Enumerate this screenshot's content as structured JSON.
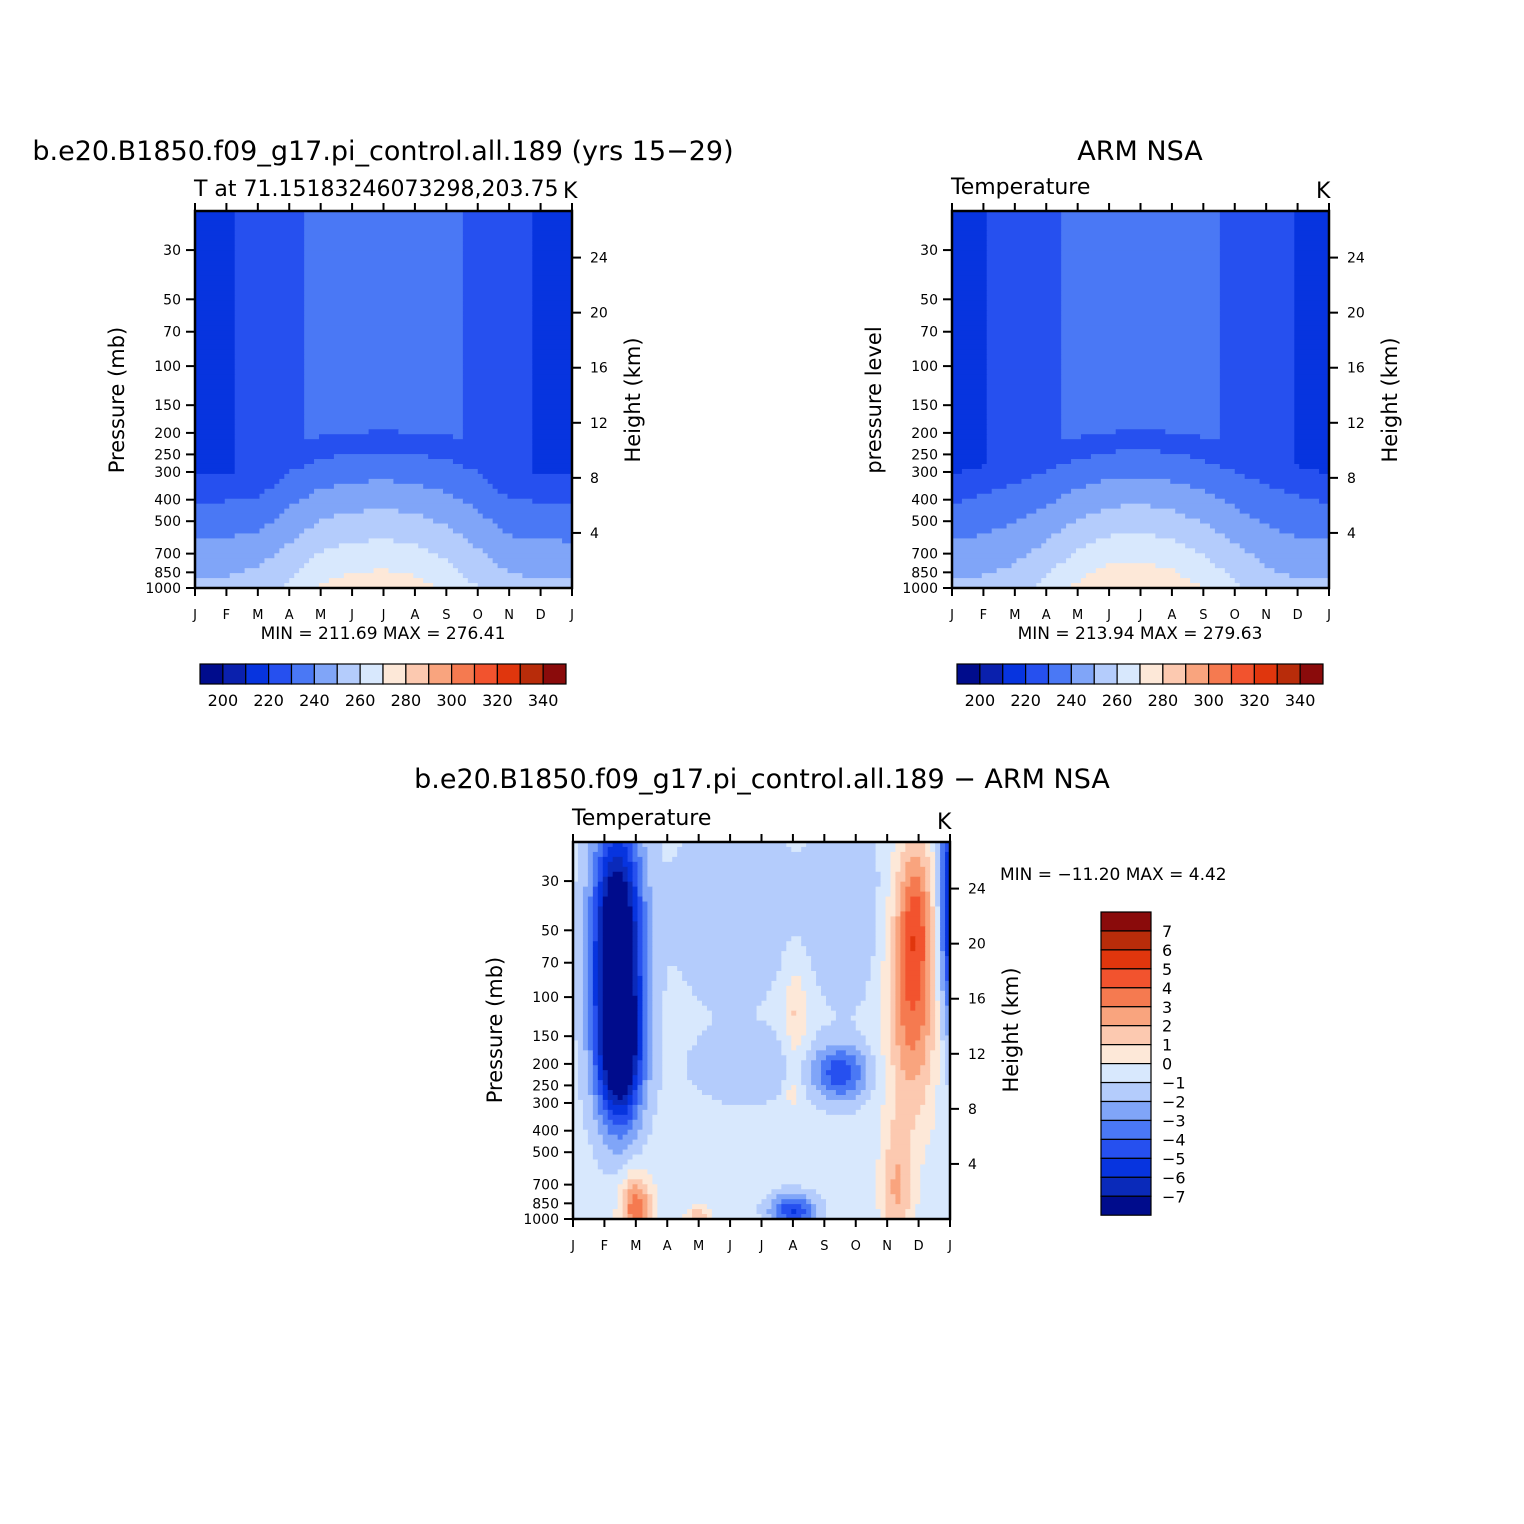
{
  "colors": {
    "abs_levels": [
      "#000c8c",
      "#0a20ad",
      "#0734df",
      "#2650ef",
      "#4a78f5",
      "#80a5f8",
      "#b4ccfc",
      "#d8e8fd",
      "#fde8d8",
      "#fcc9b0",
      "#f9a47e",
      "#f57a50",
      "#f2532e",
      "#e0360d",
      "#b82c0a",
      "#8a0b0b"
    ],
    "diff_levels": [
      "#000c8c",
      "#0a2aba",
      "#0734df",
      "#2650ef",
      "#4a78f5",
      "#80a5f8",
      "#b4ccfc",
      "#d8e8fd",
      "#fde8d8",
      "#fcc9b0",
      "#f9a47e",
      "#f57a50",
      "#f2532e",
      "#e0360d",
      "#b82c0a",
      "#8a0b0b"
    ]
  },
  "chart_data": [
    {
      "type": "heatmap",
      "title": "b.e20.B1850.f09_g17.pi_control.all.189 (yrs 15−29)",
      "subtitle_left": "T at 71.15183246073298,203.75",
      "subtitle_right": "K",
      "ylabel": "Pressure (mb)",
      "ylabel_right": "Height (km)",
      "x_ticks": [
        "J",
        "F",
        "M",
        "A",
        "M",
        "J",
        "J",
        "A",
        "S",
        "O",
        "N",
        "D",
        "J"
      ],
      "y_ticks": [
        30,
        50,
        70,
        100,
        150,
        200,
        250,
        300,
        400,
        500,
        700,
        850,
        1000
      ],
      "ylim": [
        1000,
        20
      ],
      "y_log": true,
      "height_ticks": [
        4,
        8,
        12,
        16,
        20,
        24
      ],
      "min_label": "MIN = 211.69 MAX = 276.41",
      "min": 211.69,
      "max": 276.41,
      "months": [
        0,
        1,
        2,
        3,
        4,
        5,
        6,
        7,
        8,
        9,
        10,
        11,
        12
      ],
      "tropopause_mb": [
        310,
        305,
        300,
        230,
        205,
        200,
        195,
        200,
        205,
        225,
        300,
        305,
        310
      ],
      "strat_cold": [
        true,
        true,
        true,
        false,
        false,
        false,
        false,
        false,
        false,
        true,
        true,
        true,
        true
      ],
      "cold_top_mb": [
        250,
        255,
        250,
        200,
        0,
        0,
        0,
        0,
        0,
        200,
        120,
        110,
        110
      ],
      "surface_temp": [
        252,
        253,
        256,
        262,
        271,
        275,
        276,
        274,
        268,
        260,
        254,
        252,
        252
      ],
      "levels": [
        190,
        200,
        210,
        220,
        230,
        240,
        250,
        260,
        270,
        280,
        290,
        300,
        310,
        320,
        330,
        340,
        350
      ]
    },
    {
      "type": "heatmap",
      "title": "ARM NSA",
      "subtitle_left": "Temperature",
      "subtitle_right": "K",
      "ylabel": "pressure level",
      "ylabel_right": "Height (km)",
      "x_ticks": [
        "J",
        "F",
        "M",
        "A",
        "M",
        "J",
        "J",
        "A",
        "S",
        "O",
        "N",
        "D",
        "J"
      ],
      "y_ticks": [
        30,
        50,
        70,
        100,
        150,
        200,
        250,
        300,
        400,
        500,
        700,
        850,
        1000
      ],
      "ylim": [
        1000,
        20
      ],
      "y_log": true,
      "height_ticks": [
        4,
        8,
        12,
        16,
        20,
        24
      ],
      "min_label": "MIN = 213.94 MAX = 279.63",
      "min": 213.94,
      "max": 279.63,
      "months": [
        0,
        1,
        2,
        3,
        4,
        5,
        6,
        7,
        8,
        9,
        10,
        11,
        12
      ],
      "surface_temp": [
        252,
        253,
        256,
        263,
        272,
        278,
        279,
        276,
        270,
        262,
        255,
        252,
        252
      ],
      "levels": [
        190,
        200,
        210,
        220,
        230,
        240,
        250,
        260,
        270,
        280,
        290,
        300,
        310,
        320,
        330,
        340,
        350
      ]
    },
    {
      "type": "heatmap",
      "title": "b.e20.B1850.f09_g17.pi_control.all.189 − ARM NSA",
      "subtitle_left": "Temperature",
      "subtitle_right": "K",
      "ylabel": "Pressure (mb)",
      "ylabel_right": "Height (km)",
      "x_ticks": [
        "J",
        "F",
        "M",
        "A",
        "M",
        "J",
        "J",
        "A",
        "S",
        "O",
        "N",
        "D",
        "J"
      ],
      "y_ticks": [
        30,
        50,
        70,
        100,
        150,
        200,
        250,
        300,
        400,
        500,
        700,
        850,
        1000
      ],
      "ylim": [
        1000,
        20
      ],
      "y_log": true,
      "height_ticks": [
        4,
        8,
        12,
        16,
        20,
        24
      ],
      "min_label": "MIN = −11.20 MAX = 4.42",
      "min": -11.2,
      "max": 4.42,
      "levels": [
        -8,
        -7,
        -6,
        -5,
        -4,
        -3,
        -2,
        -1,
        0,
        1,
        2,
        3,
        4,
        5,
        6,
        7,
        8
      ],
      "colorbar_labels": [
        "7",
        "6",
        "5",
        "4",
        "3",
        "2",
        "1",
        "0",
        "−1",
        "−2",
        "−3",
        "−4",
        "−5",
        "−6",
        "−7"
      ]
    }
  ],
  "colorbar_abs": {
    "labels": [
      "200",
      "220",
      "240",
      "260",
      "280",
      "300",
      "320",
      "340"
    ]
  }
}
